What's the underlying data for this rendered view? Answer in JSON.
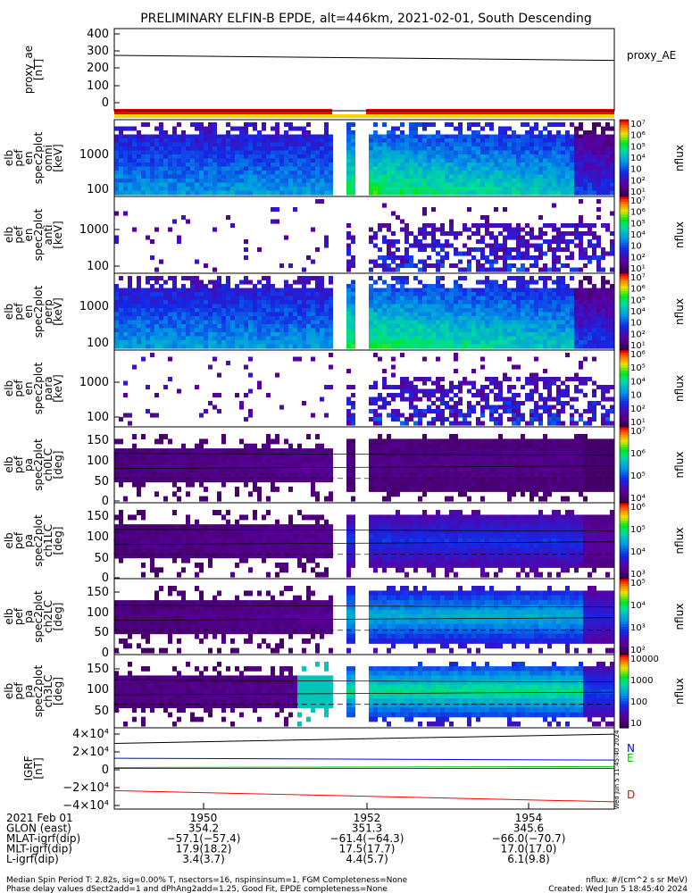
{
  "title": "PRELIMINARY ELFIN-B EPDE, alt=446km, 2021-02-01, South Descending",
  "colors": {
    "frame": "#000000",
    "red_bar": "#ff0000",
    "yellow_bar": "#ffd200",
    "N": "#0000ff",
    "E": "#00c800",
    "D": "#ff0000"
  },
  "chart_data": [
    {
      "type": "line",
      "name": "proxy_ae",
      "ylabel_lines": [
        "proxy_ae",
        "[nT]"
      ],
      "yticks": [
        "400",
        "300",
        "200",
        "100",
        "0"
      ],
      "ylim": [
        0,
        420
      ],
      "legend": "proxy_AE",
      "series": [
        {
          "name": "proxy_AE",
          "x": [
            "1948:10",
            "1955:40"
          ],
          "y": [
            290,
            262
          ]
        }
      ]
    },
    {
      "type": "heatmap",
      "name": "spectrogram-1",
      "ylabel_lines": [
        "elb",
        "pef",
        "en",
        "spec2plot",
        "omni",
        "[keV]"
      ],
      "yticks": [
        "1000",
        "100"
      ],
      "yscale": "log",
      "colorbar": {
        "label": "nflux",
        "ticks": [
          "10⁷",
          "10⁶",
          "10⁵",
          "10⁴",
          "10⁳",
          "10²",
          "10¹"
        ]
      }
    },
    {
      "type": "heatmap",
      "name": "spectrogram-2",
      "ylabel_lines": [
        "elb",
        "pef",
        "en",
        "spec2plot",
        "anti",
        "[keV]"
      ],
      "yticks": [
        "1000",
        "100"
      ],
      "yscale": "log",
      "colorbar": {
        "label": "nflux",
        "ticks": [
          "10⁷",
          "10⁶",
          "10⁵",
          "10⁴",
          "10⁳",
          "10²",
          "10¹"
        ]
      }
    },
    {
      "type": "heatmap",
      "name": "spectrogram-3",
      "ylabel_lines": [
        "elb",
        "pef",
        "en",
        "spec2plot",
        "perp",
        "[keV]"
      ],
      "yticks": [
        "1000",
        "100"
      ],
      "yscale": "log",
      "colorbar": {
        "label": "nflux",
        "ticks": [
          "10⁷",
          "10⁶",
          "10⁵",
          "10⁴",
          "10⁳",
          "10²",
          "10¹"
        ]
      }
    },
    {
      "type": "heatmap",
      "name": "spectrogram-4",
      "ylabel_lines": [
        "elb",
        "pef",
        "en",
        "spec2plot",
        "para",
        "[keV]"
      ],
      "yticks": [
        "1000",
        "100"
      ],
      "yscale": "log",
      "colorbar": {
        "label": "nflux",
        "ticks": [
          "10⁶",
          "10⁵",
          "10⁴",
          "10⁳",
          "10²",
          "10¹"
        ]
      }
    },
    {
      "type": "heatmap",
      "name": "pitch-angle-ch0",
      "ylabel_lines": [
        "elb",
        "pef",
        "pa",
        "spec2plot",
        "ch0LC",
        "[deg]"
      ],
      "yticks": [
        "150",
        "100",
        "50",
        "0"
      ],
      "ylim": [
        0,
        180
      ],
      "colorbar": {
        "label": "nflux",
        "ticks": [
          "10⁷",
          "10⁶",
          "10⁵",
          "10⁴"
        ]
      }
    },
    {
      "type": "heatmap",
      "name": "pitch-angle-ch1",
      "ylabel_lines": [
        "elb",
        "pef",
        "pa",
        "spec2plot",
        "ch1LC",
        "[deg]"
      ],
      "yticks": [
        "150",
        "100",
        "50",
        "0"
      ],
      "ylim": [
        0,
        180
      ],
      "colorbar": {
        "label": "nflux",
        "ticks": [
          "10⁶",
          "10⁵",
          "10⁴",
          "10³"
        ]
      }
    },
    {
      "type": "heatmap",
      "name": "pitch-angle-ch2",
      "ylabel_lines": [
        "elb",
        "pef",
        "pa",
        "spec2plot",
        "ch2LC",
        "[deg]"
      ],
      "yticks": [
        "150",
        "100",
        "50",
        "0"
      ],
      "ylim": [
        0,
        180
      ],
      "colorbar": {
        "label": "nflux",
        "ticks": [
          "10⁵",
          "10⁴",
          "10³",
          "10²"
        ]
      }
    },
    {
      "type": "heatmap",
      "name": "pitch-angle-ch3",
      "ylabel_lines": [
        "elb",
        "pef",
        "pa",
        "spec2plot",
        "ch3LC",
        "[deg]"
      ],
      "yticks": [
        "150",
        "100",
        "50"
      ],
      "ylim": [
        0,
        180
      ],
      "colorbar": {
        "label": "nflux",
        "ticks": [
          "10000",
          "1000",
          "100",
          "10"
        ]
      }
    },
    {
      "type": "line",
      "name": "igrf",
      "ylabel_lines": [
        "IGRF",
        "[nT]"
      ],
      "yticks": [
        "4×10⁴",
        "2×10⁴",
        "0",
        "−2×10⁴",
        "−4×10⁴"
      ],
      "ylim": [
        -40000,
        40000
      ],
      "series": [
        {
          "name": "N",
          "x": [
            "1948:10",
            "1955:40"
          ],
          "y": [
            11000,
            9000
          ]
        },
        {
          "name": "E",
          "x": [
            "1948:10",
            "1955:40"
          ],
          "y": [
            1000,
            2000
          ]
        },
        {
          "name": "D",
          "x": [
            "1948:10",
            "1955:40"
          ],
          "y": [
            -24000,
            -36000
          ]
        },
        {
          "name": "total",
          "x": [
            "1948:10",
            "1955:40"
          ],
          "y": [
            27000,
            37000
          ]
        }
      ]
    }
  ],
  "xaxis": {
    "row_labels": [
      "2021 Feb 01",
      "GLON (east)",
      "MLAT-igrf(dip)",
      "MLT-igrf(dip)",
      "L-igrf(dip)"
    ],
    "columns": [
      {
        "time": "1950",
        "glon": "354.2",
        "mlat": "−57.1(−57.4)",
        "mlt": "17.9(18.2)",
        "l": "3.4(3.7)"
      },
      {
        "time": "1952",
        "glon": "351.3",
        "mlat": "−61.4(−64.3)",
        "mlt": "17.5(17.7)",
        "l": "4.4(5.7)"
      },
      {
        "time": "1954",
        "glon": "345.6",
        "mlat": "−66.0(−70.7)",
        "mlt": "17.0(17.0)",
        "l": "6.1(9.8)"
      }
    ]
  },
  "footer": {
    "left1": "Median Spin Period T: 2.82s, sig=0.00% T, nsectors=16, nspinsinsum=1, FGM Completeness=None",
    "left2": "Phase delay values dSect2add=1 and dPhAng2add=1.25, Good Fit, EPDE completeness=None",
    "right1": "nflux: #/(cm^2 s sr MeV)",
    "right2": "Created: Wed Jun  5 18:45:40 2024",
    "side_stamp": "Wed Jun  5 11:45:40 2024"
  }
}
